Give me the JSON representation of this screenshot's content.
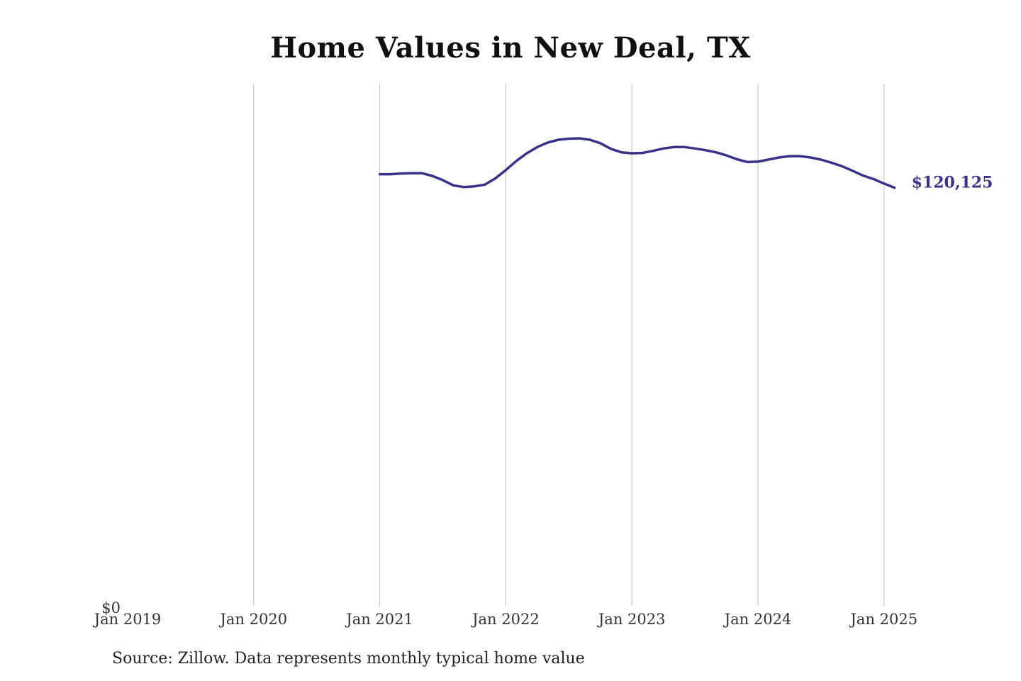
{
  "chart_data": {
    "type": "line",
    "title": "Home Values in New Deal, TX",
    "xlabel": "",
    "ylabel": "",
    "x_ticks": [
      "Jan 2019",
      "Jan 2020",
      "Jan 2021",
      "Jan 2022",
      "Jan 2023",
      "Jan 2024",
      "Jan 2025"
    ],
    "y_tick_label": "$0",
    "grid": "vertical",
    "ylim": [
      0,
      150000
    ],
    "line_color": "#3a3189",
    "end_label": "$120,125",
    "series": [
      {
        "x": [
          "2021-01",
          "2021-02",
          "2021-03",
          "2021-04",
          "2021-05",
          "2021-06",
          "2021-07",
          "2021-08",
          "2021-09",
          "2021-10",
          "2021-11",
          "2021-12",
          "2022-01",
          "2022-02",
          "2022-03",
          "2022-04",
          "2022-05",
          "2022-06",
          "2022-07",
          "2022-08",
          "2022-09",
          "2022-10",
          "2022-11",
          "2022-12",
          "2023-01",
          "2023-02",
          "2023-03",
          "2023-04",
          "2023-05",
          "2023-06",
          "2023-07",
          "2023-08",
          "2023-09",
          "2023-10",
          "2023-11",
          "2023-12",
          "2024-01",
          "2024-02",
          "2024-03",
          "2024-04",
          "2024-05",
          "2024-06",
          "2024-07",
          "2024-08",
          "2024-09",
          "2024-10",
          "2024-11",
          "2024-12",
          "2025-01",
          "2025-02"
        ],
        "values": [
          124000,
          124000,
          124200,
          124300,
          124300,
          123500,
          122300,
          120800,
          120300,
          120500,
          121000,
          122800,
          125200,
          127800,
          130000,
          131800,
          133100,
          133900,
          134200,
          134300,
          133900,
          132900,
          131300,
          130300,
          130000,
          130100,
          130700,
          131400,
          131800,
          131800,
          131400,
          130900,
          130300,
          129400,
          128300,
          127500,
          127600,
          128200,
          128800,
          129200,
          129200,
          128800,
          128200,
          127300,
          126300,
          125000,
          123600,
          122600,
          121300,
          120125
        ]
      }
    ]
  },
  "source_text": "Source: Zillow. Data represents monthly typical home value"
}
